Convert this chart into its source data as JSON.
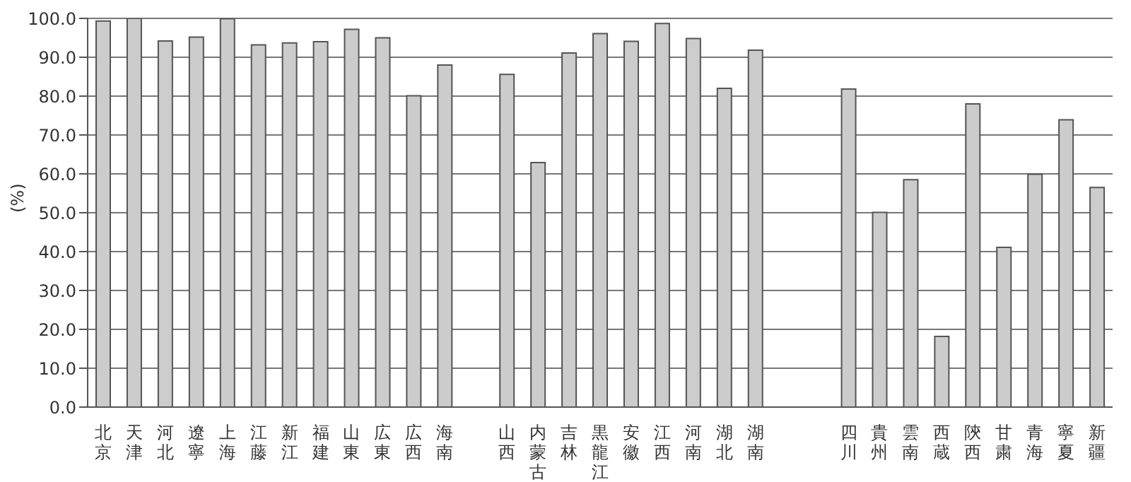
{
  "chart_data": {
    "type": "bar",
    "ylabel": "(%)",
    "categories": [
      "北京",
      "天津",
      "河北",
      "遼寧",
      "上海",
      "江藤",
      "新江",
      "福建",
      "山東",
      "広東",
      "広西",
      "海南",
      null,
      "山西",
      "内蒙古",
      "吉林",
      "黒龍江",
      "安徽",
      "江西",
      "河南",
      "湖北",
      "湖南",
      null,
      null,
      "四川",
      "貴州",
      "雲南",
      "西蔵",
      "陝西",
      "甘粛",
      "青海",
      "寧夏",
      "新疆"
    ],
    "values": [
      99.3,
      100,
      94.2,
      95.2,
      99.9,
      93.2,
      93.7,
      94.0,
      97.2,
      95.0,
      80.1,
      88.0,
      null,
      85.6,
      62.9,
      91.1,
      96.1,
      94.1,
      98.7,
      94.8,
      82.0,
      91.8,
      null,
      null,
      81.8,
      50.1,
      58.5,
      18.2,
      78.0,
      41.1,
      59.9,
      73.9,
      56.5
    ],
    "color": "#cccccc",
    "ylim": [
      0,
      100
    ],
    "yticks": [
      {
        "value": 0,
        "label": "0.0"
      },
      {
        "value": 10,
        "label": "10.0"
      },
      {
        "value": 20,
        "label": "20.0"
      },
      {
        "value": 30,
        "label": "30.0"
      },
      {
        "value": 40,
        "label": "40.0"
      },
      {
        "value": 50,
        "label": "50.0"
      },
      {
        "value": 60,
        "label": "60.0"
      },
      {
        "value": 70,
        "label": "70.0"
      },
      {
        "value": 80,
        "label": "80.0"
      },
      {
        "value": 90,
        "label": "90.0"
      },
      {
        "value": 100,
        "label": "100.0"
      }
    ],
    "grid": "y",
    "legend": false
  }
}
